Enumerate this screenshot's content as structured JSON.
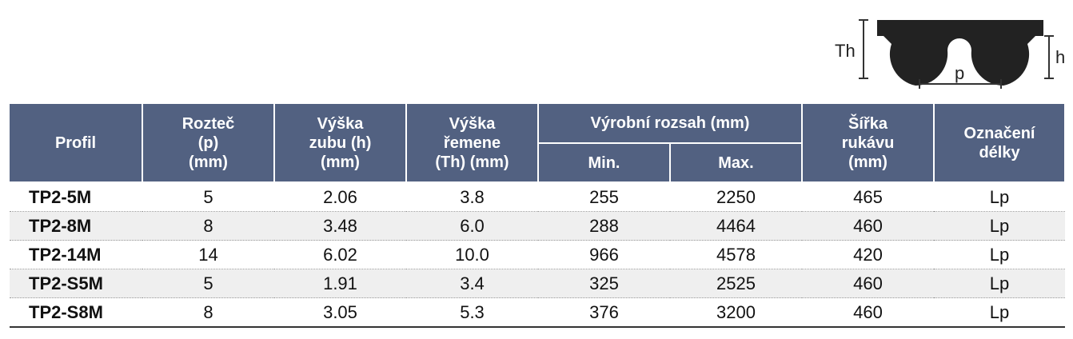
{
  "diagram": {
    "labels": {
      "th": "Th",
      "h": "h",
      "p": "p"
    }
  },
  "table": {
    "header": [
      [
        "Profil"
      ],
      [
        "Rozteč",
        "(p)",
        "(mm)"
      ],
      [
        "Výška",
        "zubu (h)",
        "(mm)"
      ],
      [
        "Výška",
        "řemene",
        "(Th) (mm)"
      ],
      [
        "Výrobní rozsah (mm)"
      ],
      [
        "Šířka",
        "rukávu",
        "(mm)"
      ],
      [
        "Označení",
        "délky"
      ]
    ],
    "subheader": [
      "Min.",
      "Max."
    ],
    "rows": [
      [
        "TP2-5M",
        "5",
        "2.06",
        "3.8",
        "255",
        "2250",
        "465",
        "Lp"
      ],
      [
        "TP2-8M",
        "8",
        "3.48",
        "6.0",
        "288",
        "4464",
        "460",
        "Lp"
      ],
      [
        "TP2-14M",
        "14",
        "6.02",
        "10.0",
        "966",
        "4578",
        "420",
        "Lp"
      ],
      [
        "TP2-S5M",
        "5",
        "1.91",
        "3.4",
        "325",
        "2525",
        "460",
        "Lp"
      ],
      [
        "TP2-S8M",
        "8",
        "3.05",
        "5.3",
        "376",
        "3200",
        "460",
        "Lp"
      ]
    ]
  }
}
